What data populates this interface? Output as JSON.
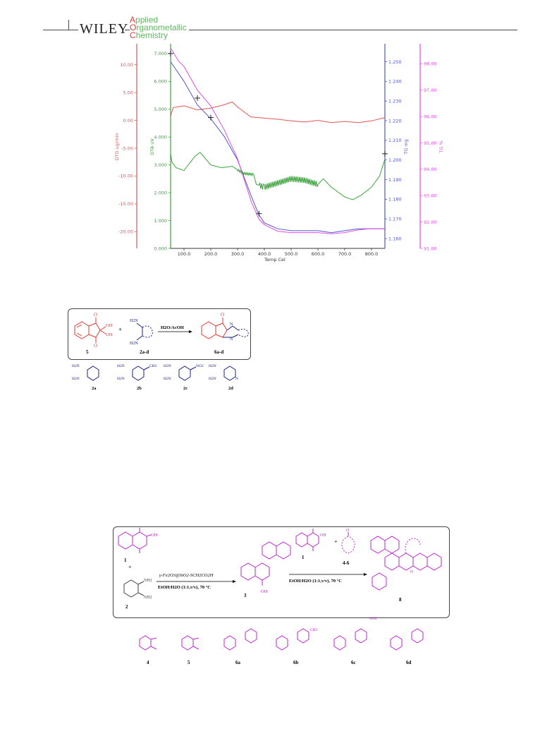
{
  "header": {
    "publisher": "WILEY",
    "journal_line1_cap": "A",
    "journal_line1_rest": "pplied",
    "journal_line2_cap": "O",
    "journal_line2_rest": "rganometallic",
    "journal_line3_cap": "C",
    "journal_line3_rest": "hemistry"
  },
  "colors": {
    "dtg": "#e05555",
    "dta": "#3aa33a",
    "tg": "#4f55d8",
    "tgpct": "#e24ee2",
    "scheme_red": "#e53935",
    "scheme_blue": "#1a237e",
    "scheme_magenta": "#c026d3"
  },
  "chart_data": {
    "type": "line",
    "xlabel": "Temp Cel",
    "xlim": [
      50,
      850
    ],
    "x_ticks": [
      "100.0",
      "200.0",
      "300.0",
      "400.0",
      "500.0",
      "600.0",
      "700.0",
      "800.0"
    ],
    "grid": false,
    "axes": {
      "dtg": {
        "label": "DTG ug/min",
        "ylim": [
          -23,
          13
        ],
        "ticks": [
          "10.00",
          "5.00",
          "0.00",
          "-5.00",
          "-10.00",
          "-15.00",
          "-20.00"
        ]
      },
      "dta": {
        "label": "DTA uV",
        "ylim": [
          0,
          7.2
        ],
        "ticks": [
          "7.000",
          "6.000",
          "5.000",
          "4.000",
          "3.000",
          "2.000",
          "1.000",
          "0.000"
        ]
      },
      "tg": {
        "label": "TG mg",
        "ylim": [
          1.155,
          1.257
        ],
        "ticks": [
          "1.250",
          "1.240",
          "1.230",
          "1.220",
          "1.210",
          "1.200",
          "1.190",
          "1.180",
          "1.170",
          "1.160"
        ]
      },
      "tgpct": {
        "label": "TG %",
        "ylim": [
          91.0,
          98.6
        ],
        "ticks": [
          "98.00",
          "97.00",
          "96.00",
          "95.00",
          "94.00",
          "93.00",
          "92.00",
          "91.00"
        ]
      }
    },
    "series": [
      {
        "axis": "dtg",
        "x": [
          50,
          60,
          100,
          150,
          200,
          250,
          280,
          300,
          350,
          400,
          450,
          500,
          550,
          600,
          650,
          700,
          750,
          800,
          850
        ],
        "y": [
          0.8,
          2.3,
          2.6,
          1.9,
          2.2,
          2.8,
          3.3,
          2.4,
          0.6,
          0.4,
          0.2,
          -0.1,
          -0.3,
          0.0,
          -0.4,
          -0.2,
          -0.4,
          -0.1,
          0.5
        ]
      },
      {
        "axis": "dta",
        "x": [
          50,
          55,
          70,
          100,
          140,
          160,
          200,
          240,
          280,
          320,
          360,
          370,
          400,
          450,
          500,
          550,
          600,
          620,
          650,
          700,
          730,
          760,
          800,
          830,
          850
        ],
        "y": [
          3.4,
          3.1,
          2.9,
          2.8,
          3.3,
          3.45,
          3.0,
          2.9,
          2.95,
          2.7,
          2.65,
          2.3,
          2.2,
          2.35,
          2.5,
          2.45,
          2.3,
          2.5,
          2.2,
          1.85,
          1.75,
          1.9,
          2.2,
          2.6,
          3.2
        ]
      },
      {
        "axis": "tg",
        "x": [
          50,
          100,
          150,
          200,
          250,
          300,
          350,
          380,
          400,
          450,
          500,
          600,
          650,
          700,
          750,
          800,
          850
        ],
        "y": [
          1.25,
          1.24,
          1.228,
          1.221,
          1.212,
          1.2,
          1.182,
          1.172,
          1.168,
          1.165,
          1.164,
          1.164,
          1.163,
          1.164,
          1.165,
          1.165,
          1.165
        ]
      },
      {
        "axis": "tgpct",
        "x": [
          50,
          80,
          100,
          150,
          200,
          250,
          300,
          350,
          380,
          400,
          450,
          500,
          600,
          650,
          700,
          750,
          800,
          850
        ],
        "y": [
          98.6,
          98.1,
          97.9,
          97.0,
          96.4,
          95.5,
          94.4,
          92.8,
          92.1,
          91.9,
          91.65,
          91.6,
          91.6,
          91.55,
          91.6,
          91.7,
          91.75,
          91.75
        ]
      }
    ],
    "markers": [
      {
        "axis": "dta",
        "x": 50,
        "y": 7.0
      },
      {
        "axis": "dta",
        "x": 150,
        "y": 5.4
      },
      {
        "axis": "dta",
        "x": 200,
        "y": 4.7
      },
      {
        "axis": "dta",
        "x": 380,
        "y": 1.25
      },
      {
        "axis": "dta",
        "x": 850,
        "y": 3.4
      }
    ]
  },
  "scheme1": {
    "conditions": "H2O/AcOH",
    "compound_5": "5",
    "compound_2ad": "2a-d",
    "compound_6ad": "6a-d",
    "oh": "OH",
    "h2n": "H2N",
    "ch3": "CH3",
    "no2": "NO2",
    "n": "N",
    "labels": [
      "2a",
      "2b",
      "2c",
      "2d"
    ]
  },
  "scheme2": {
    "catalyst": "γ-Fe2O3@SiO2-SCH2CO2H",
    "solvent1": "EtOH/H2O (1:1,v/v), 70 °C",
    "solvent2": "EtOH/H2O (1:1,v/v), 70 °C",
    "reagent_46": "4-6",
    "compound_1": "1",
    "compound_1b": "1",
    "compound_2": "2",
    "compound_3": "3",
    "compound_8": "8",
    "nh2": "NH2",
    "oh": "OH",
    "plus": "+",
    "bottom_labels": [
      "4",
      "5",
      "6a",
      "6b",
      "6c",
      "6d"
    ]
  }
}
